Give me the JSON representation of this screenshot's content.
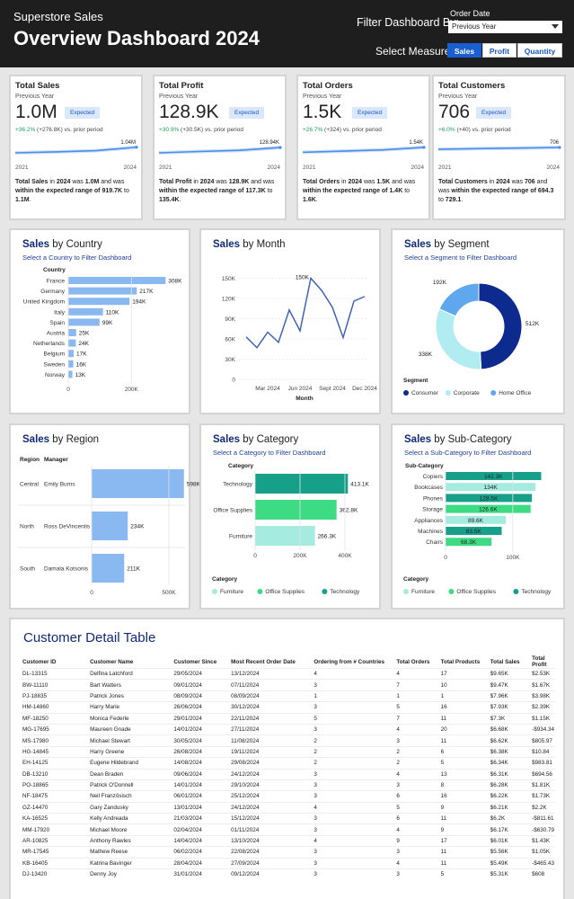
{
  "header": {
    "subtitle": "Superstore Sales",
    "title": "Overview Dashboard 2024",
    "filter_label": "Filter Dashboard By:",
    "order_date_label": "Order Date",
    "order_date_value": "Previous Year",
    "measure_label": "Select Measure:",
    "measures": [
      "Sales",
      "Profit",
      "Quantity"
    ],
    "active_measure": "Sales"
  },
  "colors": {
    "header_bg": "#1e1e1e",
    "accent": "#1a5fd1",
    "consumer": "#0d2a8f",
    "corporate": "#b0ecf2",
    "home_office": "#5fa8ee",
    "furniture": "#a6ebe0",
    "office_supplies": "#3ddc84",
    "technology": "#16a08a",
    "bar_blue": "#8ab9f2"
  },
  "kpis": [
    {
      "title": "Total Sales",
      "period": "Previous Year",
      "value": "1.0M",
      "badge": "Expected",
      "change": "+36.2%",
      "change_detail": "(+276.8K) vs. prior period",
      "x_start": "2021",
      "x_end": "2024",
      "end_label": "1.04M",
      "spark": [
        0.55,
        0.63,
        0.74,
        1.04
      ],
      "spark_max": 1.1,
      "desc_measure": "Total Sales",
      "desc_year": "2024",
      "desc_value": "1.0M",
      "desc_range": "919.7K",
      "desc_range_end": "1.1M"
    },
    {
      "title": "Total Profit",
      "period": "Previous Year",
      "value": "128.9K",
      "badge": "Expected",
      "change": "+30.9%",
      "change_detail": "(+30.5K) vs. prior period",
      "x_start": "2021",
      "x_end": "2024",
      "end_label": "128.94K",
      "spark": [
        70,
        85,
        98,
        128.94
      ],
      "spark_max": 140,
      "desc_measure": "Total Profit",
      "desc_year": "2024",
      "desc_value": "128.9K",
      "desc_range": "117.3K",
      "desc_range_end": "135.4K"
    },
    {
      "title": "Total Orders",
      "period": "Previous Year",
      "value": "1.5K",
      "badge": "Expected",
      "change": "+26.7%",
      "change_detail": "(+324) vs. prior period",
      "x_start": "2021",
      "x_end": "2024",
      "end_label": "1.54K",
      "spark": [
        0.9,
        1.05,
        1.22,
        1.54
      ],
      "spark_max": 1.65,
      "desc_measure": "Total Orders",
      "desc_year": "2024",
      "desc_value": "1.5K",
      "desc_range": "1.4K",
      "desc_range_end": "1.6K"
    },
    {
      "title": "Total Customers",
      "period": "Previous Year",
      "value": "706",
      "badge": "Expected",
      "change": "+6.0%",
      "change_detail": "(+40) vs. prior period",
      "x_start": "2021",
      "x_end": "2024",
      "end_label": "706",
      "spark": [
        595,
        636,
        666,
        706
      ],
      "spark_max": 760,
      "desc_measure": "Total Customers",
      "desc_year": "2024",
      "desc_value": "706",
      "desc_range": "694.3",
      "desc_range_end": "729.1"
    }
  ],
  "kpi_text": {
    "in": "in",
    "was": "was",
    "within": "within the expected range of",
    "to": "to",
    "vs": "vs. prior period"
  },
  "country_card": {
    "measure": "Sales",
    "rest": " by Country",
    "subtitle": "Select a Country to Filter Dashboard",
    "axis_title": "Country"
  },
  "month_card": {
    "measure": "Sales",
    "rest": " by Month",
    "xlabel": "Month"
  },
  "segment_card": {
    "measure": "Sales",
    "rest": " by Segment",
    "subtitle": "Select a Segment to Filter Dashboard",
    "legend_title": "Segment"
  },
  "region_card": {
    "measure": "Sales",
    "rest": " by Region",
    "col_region": "Region",
    "col_manager": "Manager"
  },
  "category_card": {
    "measure": "Sales",
    "rest": " by Category",
    "subtitle": "Select a Category to Filter Dashboard",
    "axis_title": "Category",
    "legend_title": "Category"
  },
  "subcat_card": {
    "measure": "Sales",
    "rest": " by Sub-Category",
    "subtitle": "Select a Sub-Category to Filter Dashboard",
    "axis_title": "Sub-Category",
    "legend_title": "Category"
  },
  "chart_data": [
    {
      "type": "bar",
      "orientation": "horizontal",
      "categories": [
        "France",
        "Germany",
        "United Kingdom",
        "Italy",
        "Spain",
        "Austria",
        "Netherlands",
        "Belgium",
        "Sweden",
        "Norway"
      ],
      "values": [
        308,
        217,
        194,
        110,
        99,
        25,
        24,
        17,
        16,
        13
      ],
      "labels": [
        "308K",
        "217K",
        "194K",
        "110K",
        "99K",
        "25K",
        "24K",
        "17K",
        "16K",
        "13K"
      ],
      "xticks": [
        "0",
        "200K"
      ],
      "xtick_values": [
        0,
        200
      ],
      "xlim": [
        0,
        330
      ]
    },
    {
      "type": "line",
      "x": [
        "2024-01",
        "2024-02",
        "2024-03",
        "2024-04",
        "2024-05",
        "2024-06",
        "2024-07",
        "2024-08",
        "2024-09",
        "2024-10",
        "2024-11",
        "2024-12"
      ],
      "values": [
        63,
        47,
        70,
        55,
        103,
        72,
        150,
        132,
        107,
        62,
        116,
        123
      ],
      "point_label": "150K",
      "point_label_index": 6,
      "yticks": [
        "0",
        "30K",
        "60K",
        "90K",
        "120K",
        "150K"
      ],
      "ytick_values": [
        0,
        30,
        60,
        90,
        120,
        150
      ],
      "xticks": [
        "Mar 2024",
        "Jun 2024",
        "Sept 2024",
        "Dec 2024"
      ],
      "xtick_indices": [
        2,
        5,
        8,
        11
      ],
      "ylim": [
        0,
        160
      ],
      "grid": true
    },
    {
      "type": "pie",
      "donut": true,
      "series": [
        {
          "name": "Consumer",
          "value": 512,
          "label": "512K"
        },
        {
          "name": "Corporate",
          "value": 338,
          "label": "338K"
        },
        {
          "name": "Home Office",
          "value": 192,
          "label": "192K"
        }
      ],
      "legend": "bottom"
    },
    {
      "type": "bar",
      "orientation": "horizontal",
      "categories": [
        "Central",
        "North",
        "South"
      ],
      "managers": [
        "Emily Burns",
        "Ross DeVincentis",
        "Damala Kotsonis"
      ],
      "values": [
        598,
        234,
        211
      ],
      "labels": [
        "598K",
        "234K",
        "211K"
      ],
      "xticks": [
        "0",
        "500K"
      ],
      "xtick_values": [
        0,
        500
      ],
      "xlim": [
        0,
        640
      ]
    },
    {
      "type": "bar",
      "orientation": "horizontal",
      "categories": [
        "Technology",
        "Office Supplies",
        "Furniture"
      ],
      "values": [
        413.1,
        362.8,
        266.3
      ],
      "labels": [
        "413.1K",
        "362.8K",
        "266.3K"
      ],
      "xticks": [
        "0",
        "200K",
        "400K"
      ],
      "xtick_values": [
        0,
        200,
        400
      ],
      "xlim": [
        0,
        440
      ],
      "legend": [
        "Furniture",
        "Office Supplies",
        "Technology"
      ]
    },
    {
      "type": "bar",
      "orientation": "horizontal",
      "categories": [
        "Copiers",
        "Bookcases",
        "Phones",
        "Storage",
        "Appliances",
        "Machines",
        "Chairs"
      ],
      "values": [
        142.3,
        134,
        128.5,
        126.6,
        89.6,
        83.5,
        68.3
      ],
      "labels": [
        "142.3K",
        "134K",
        "128.5K",
        "126.6K",
        "89.6K",
        "83.5K",
        "68.3K"
      ],
      "category_of": [
        "Technology",
        "Furniture",
        "Technology",
        "Office Supplies",
        "Furniture",
        "Technology",
        "Office Supplies"
      ],
      "xticks": [
        "0",
        "100K"
      ],
      "xtick_values": [
        0,
        100
      ],
      "xlim": [
        0,
        155
      ],
      "legend": [
        "Furniture",
        "Office Supplies",
        "Technology"
      ]
    }
  ],
  "table": {
    "title": "Customer Detail Table",
    "columns": [
      "Customer ID",
      "Customer Name",
      "Customer Since",
      "Most Recent Order Date",
      "Ordering from # Countries",
      "Total Orders",
      "Total Products",
      "Total Sales",
      "Total Profit"
    ],
    "rows": [
      [
        "DL-13315",
        "Delfina Latchford",
        "29/05/2024",
        "13/12/2024",
        "4",
        "4",
        "17",
        "$9.65K",
        "$2.53K"
      ],
      [
        "BW-11110",
        "Bart Watters",
        "09/01/2024",
        "07/11/2024",
        "3",
        "7",
        "10",
        "$9.47K",
        "$1.67K"
      ],
      [
        "PJ-18835",
        "Patrick Jones",
        "08/09/2024",
        "08/09/2024",
        "1",
        "1",
        "1",
        "$7.96K",
        "$3.98K"
      ],
      [
        "HM-14860",
        "Harry Marie",
        "26/06/2024",
        "30/12/2024",
        "3",
        "5",
        "16",
        "$7.93K",
        "$2.39K"
      ],
      [
        "MF-18250",
        "Monica Federle",
        "29/01/2024",
        "22/11/2024",
        "5",
        "7",
        "11",
        "$7.3K",
        "$1.15K"
      ],
      [
        "MG-17695",
        "Maureen Gnade",
        "14/01/2024",
        "27/11/2024",
        "3",
        "4",
        "20",
        "$6.68K",
        "-$934.34"
      ],
      [
        "MS-17980",
        "Michael Stewart",
        "30/05/2024",
        "11/08/2024",
        "2",
        "3",
        "11",
        "$6.62K",
        "$805.97"
      ],
      [
        "HG-14845",
        "Harry Greene",
        "26/08/2024",
        "19/11/2024",
        "2",
        "2",
        "6",
        "$6.38K",
        "$10.84"
      ],
      [
        "EH-14125",
        "Eugene Hildebrand",
        "14/08/2024",
        "29/08/2024",
        "2",
        "2",
        "5",
        "$6.34K",
        "$983.81"
      ],
      [
        "DB-13210",
        "Dean Braden",
        "09/06/2024",
        "24/12/2024",
        "3",
        "4",
        "13",
        "$6.31K",
        "$694.56"
      ],
      [
        "PO-18865",
        "Patrick O'Donnell",
        "14/01/2024",
        "29/10/2024",
        "3",
        "3",
        "8",
        "$6.28K",
        "$1.81K"
      ],
      [
        "NF-18475",
        "Neil Französisch",
        "06/01/2024",
        "25/12/2024",
        "3",
        "6",
        "16",
        "$6.22K",
        "$1.73K"
      ],
      [
        "GZ-14470",
        "Gary Zandusky",
        "13/01/2024",
        "24/12/2024",
        "4",
        "5",
        "9",
        "$6.21K",
        "$2.2K"
      ],
      [
        "KA-16525",
        "Kelly Andreada",
        "21/03/2024",
        "15/12/2024",
        "3",
        "6",
        "11",
        "$6.2K",
        "-$811.61"
      ],
      [
        "MM-17920",
        "Michael Moore",
        "02/04/2024",
        "01/11/2024",
        "3",
        "4",
        "9",
        "$6.17K",
        "-$630.79"
      ],
      [
        "AR-10825",
        "Anthony Rawles",
        "14/04/2024",
        "13/10/2024",
        "4",
        "9",
        "17",
        "$6.01K",
        "$1.43K"
      ],
      [
        "MR-17545",
        "Mathew Reese",
        "06/02/2024",
        "22/08/2024",
        "3",
        "3",
        "11",
        "$5.56K",
        "$1.05K"
      ],
      [
        "KB-16405",
        "Katrina Bavinger",
        "28/04/2024",
        "27/09/2024",
        "3",
        "4",
        "11",
        "$5.49K",
        "-$465.43"
      ],
      [
        "DJ-13420",
        "Denny Joy",
        "31/01/2024",
        "09/12/2024",
        "3",
        "3",
        "5",
        "$5.31K",
        "$608"
      ]
    ]
  }
}
